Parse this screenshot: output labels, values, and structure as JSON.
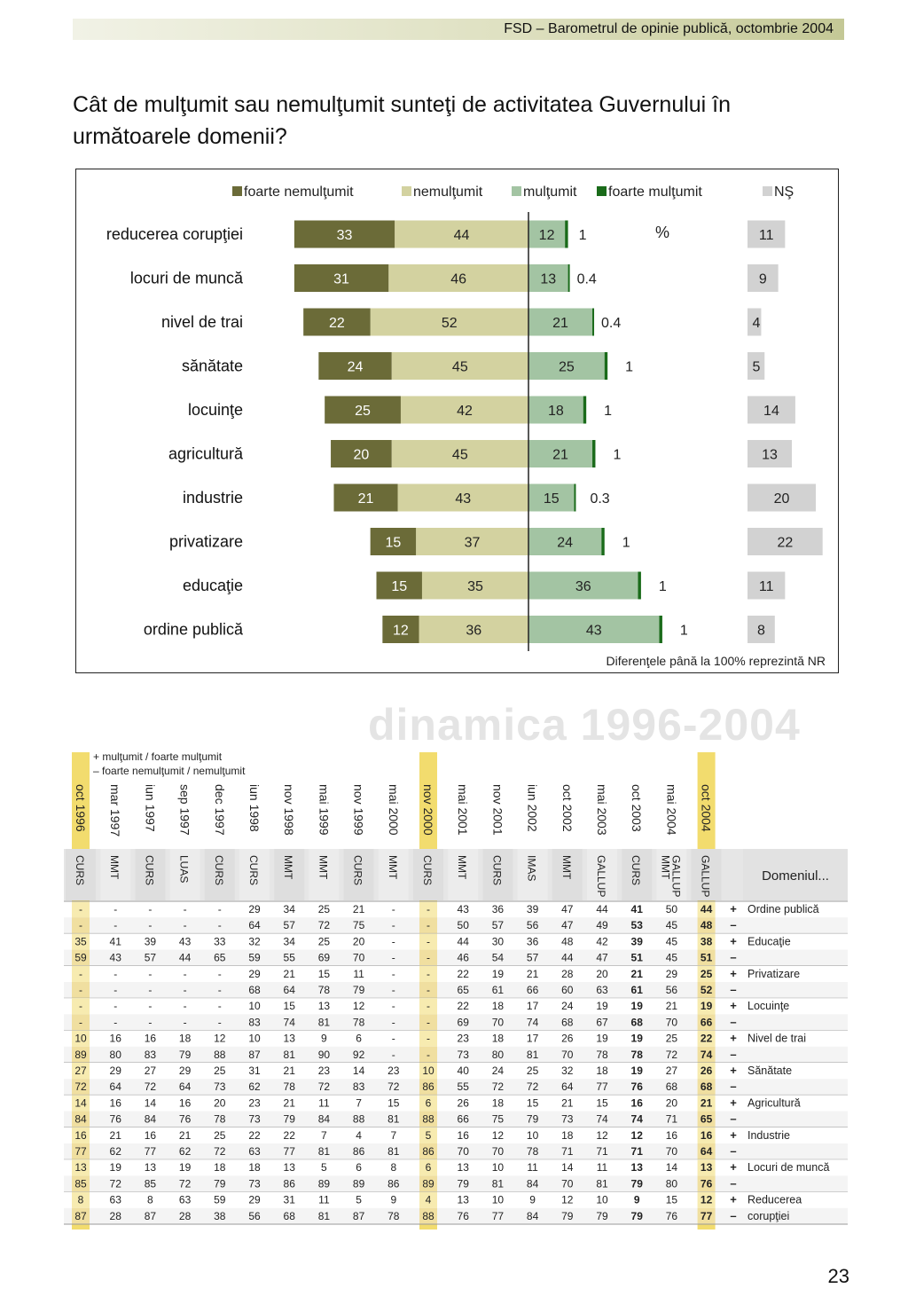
{
  "header": {
    "text": "FSD  –  Barometrul de opinie publică, octombrie 2004"
  },
  "question": "Cât de mulţumit sau nemulţumit sunteţi de activitatea Guvernului în următoarele domenii?",
  "chart_data": {
    "type": "bar",
    "orientation": "horizontal-diverging",
    "legend": [
      {
        "label": "foarte nemulţumit",
        "color": "#6b6b38"
      },
      {
        "label": "nemulţumit",
        "color": "#d3d2a0"
      },
      {
        "label": "mulţumit",
        "color": "#a3c4a3"
      },
      {
        "label": "foarte mulţumit",
        "color": "#1a6b1a"
      },
      {
        "label": "NŞ",
        "color": "#d2d2d2"
      }
    ],
    "unit": "%",
    "categories": [
      "reducerea corupţiei",
      "locuri de muncă",
      "nivel de trai",
      "sănătate",
      "locuinţe",
      "agricultură",
      "industrie",
      "privatizare",
      "educaţie",
      "ordine publică"
    ],
    "series": [
      {
        "name": "foarte nemulţumit",
        "values": [
          33,
          31,
          22,
          24,
          25,
          20,
          21,
          15,
          15,
          12
        ]
      },
      {
        "name": "nemulţumit",
        "values": [
          44,
          46,
          52,
          45,
          42,
          45,
          43,
          37,
          35,
          36
        ]
      },
      {
        "name": "mulţumit",
        "values": [
          12,
          13,
          21,
          25,
          18,
          21,
          15,
          24,
          36,
          43
        ]
      },
      {
        "name": "foarte mulţumit",
        "values": [
          1,
          0.4,
          0.4,
          1,
          1,
          1,
          0.3,
          1,
          1,
          1
        ]
      },
      {
        "name": "NŞ",
        "values": [
          11,
          9,
          4,
          5,
          14,
          13,
          20,
          22,
          11,
          8
        ]
      }
    ],
    "note": "Diferenţele până la 100% reprezintă NR"
  },
  "dynamics": {
    "title": "dinamica 1996-2004",
    "legend": [
      "+  mulţumit / foarte mulţumit",
      "–  foarte nemulţumit / nemulţumit"
    ],
    "periods": [
      "oct 1996",
      "mar 1997",
      "iun 1997",
      "sep 1997",
      "dec 1997",
      "iun 1998",
      "nov 1998",
      "mai 1999",
      "nov 1999",
      "mai 2000",
      "nov 2000",
      "mai 2001",
      "nov 2001",
      "iun 2002",
      "oct 2002",
      "mai 2003",
      "oct 2003",
      "mai 2004",
      "oct 2004"
    ],
    "sources": [
      "CURS",
      "MMT",
      "CURS",
      "LUAS",
      "CURS",
      "CURS",
      "MMT",
      "MMT",
      "CURS",
      "MMT",
      "CURS",
      "MMT",
      "CURS",
      "IMAS",
      "MMT",
      "GALLUP",
      "CURS",
      "GALLUP MMT",
      "GALLUP"
    ],
    "domain_header": "Domeniul...",
    "rows": [
      {
        "vals": [
          "-",
          "-",
          "-",
          "-",
          "-",
          "29",
          "34",
          "25",
          "21",
          "-",
          "-",
          "43",
          "36",
          "39",
          "47",
          "44",
          "41",
          "50",
          "44"
        ],
        "sign": "+",
        "domain": "Ordine publică"
      },
      {
        "vals": [
          "-",
          "-",
          "-",
          "-",
          "-",
          "64",
          "57",
          "72",
          "75",
          "-",
          "-",
          "50",
          "57",
          "56",
          "47",
          "49",
          "53",
          "45",
          "48"
        ],
        "sign": "–",
        "domain": ""
      },
      {
        "vals": [
          "35",
          "41",
          "39",
          "43",
          "33",
          "32",
          "34",
          "25",
          "20",
          "-",
          "-",
          "44",
          "30",
          "36",
          "48",
          "42",
          "39",
          "45",
          "38"
        ],
        "sign": "+",
        "domain": "Educaţie"
      },
      {
        "vals": [
          "59",
          "43",
          "57",
          "44",
          "65",
          "59",
          "55",
          "69",
          "70",
          "-",
          "-",
          "46",
          "54",
          "57",
          "44",
          "47",
          "51",
          "45",
          "51"
        ],
        "sign": "–",
        "domain": ""
      },
      {
        "vals": [
          "-",
          "-",
          "-",
          "-",
          "-",
          "29",
          "21",
          "15",
          "11",
          "-",
          "-",
          "22",
          "19",
          "21",
          "28",
          "20",
          "21",
          "29",
          "25"
        ],
        "sign": "+",
        "domain": "Privatizare"
      },
      {
        "vals": [
          "-",
          "-",
          "-",
          "-",
          "-",
          "68",
          "64",
          "78",
          "79",
          "-",
          "-",
          "65",
          "61",
          "66",
          "60",
          "63",
          "61",
          "56",
          "52"
        ],
        "sign": "–",
        "domain": ""
      },
      {
        "vals": [
          "-",
          "-",
          "-",
          "-",
          "-",
          "10",
          "15",
          "13",
          "12",
          "-",
          "-",
          "22",
          "18",
          "17",
          "24",
          "19",
          "19",
          "21",
          "19"
        ],
        "sign": "+",
        "domain": "Locuinţe"
      },
      {
        "vals": [
          "-",
          "-",
          "-",
          "-",
          "-",
          "83",
          "74",
          "81",
          "78",
          "-",
          "-",
          "69",
          "70",
          "74",
          "68",
          "67",
          "68",
          "70",
          "66"
        ],
        "sign": "–",
        "domain": ""
      },
      {
        "vals": [
          "10",
          "16",
          "16",
          "18",
          "12",
          "10",
          "13",
          "9",
          "6",
          "-",
          "-",
          "23",
          "18",
          "17",
          "26",
          "19",
          "19",
          "25",
          "22"
        ],
        "sign": "+",
        "domain": "Nivel de trai"
      },
      {
        "vals": [
          "89",
          "80",
          "83",
          "79",
          "88",
          "87",
          "81",
          "90",
          "92",
          "-",
          "-",
          "73",
          "80",
          "81",
          "70",
          "78",
          "78",
          "72",
          "74"
        ],
        "sign": "–",
        "domain": ""
      },
      {
        "vals": [
          "27",
          "29",
          "27",
          "29",
          "25",
          "31",
          "21",
          "23",
          "14",
          "23",
          "10",
          "40",
          "24",
          "25",
          "32",
          "18",
          "19",
          "27",
          "26"
        ],
        "sign": "+",
        "domain": "Sănătate"
      },
      {
        "vals": [
          "72",
          "64",
          "72",
          "64",
          "73",
          "62",
          "78",
          "72",
          "83",
          "72",
          "86",
          "55",
          "72",
          "72",
          "64",
          "77",
          "76",
          "68",
          "68"
        ],
        "sign": "–",
        "domain": ""
      },
      {
        "vals": [
          "14",
          "16",
          "14",
          "16",
          "20",
          "23",
          "21",
          "11",
          "7",
          "15",
          "6",
          "26",
          "18",
          "15",
          "21",
          "15",
          "16",
          "20",
          "21"
        ],
        "sign": "+",
        "domain": "Agricultură"
      },
      {
        "vals": [
          "84",
          "76",
          "84",
          "76",
          "78",
          "73",
          "79",
          "84",
          "88",
          "81",
          "88",
          "66",
          "75",
          "79",
          "73",
          "74",
          "74",
          "71",
          "65"
        ],
        "sign": "–",
        "domain": ""
      },
      {
        "vals": [
          "16",
          "21",
          "16",
          "21",
          "25",
          "22",
          "22",
          "7",
          "4",
          "7",
          "5",
          "16",
          "12",
          "10",
          "18",
          "12",
          "12",
          "16",
          "16"
        ],
        "sign": "+",
        "domain": "Industrie"
      },
      {
        "vals": [
          "77",
          "62",
          "77",
          "62",
          "72",
          "63",
          "77",
          "81",
          "86",
          "81",
          "86",
          "70",
          "70",
          "78",
          "71",
          "71",
          "71",
          "70",
          "64"
        ],
        "sign": "–",
        "domain": ""
      },
      {
        "vals": [
          "13",
          "19",
          "13",
          "19",
          "18",
          "18",
          "13",
          "5",
          "6",
          "8",
          "6",
          "13",
          "10",
          "11",
          "14",
          "11",
          "13",
          "14",
          "13"
        ],
        "sign": "+",
        "domain": "Locuri de muncă"
      },
      {
        "vals": [
          "85",
          "72",
          "85",
          "72",
          "79",
          "73",
          "86",
          "89",
          "89",
          "86",
          "89",
          "79",
          "81",
          "84",
          "70",
          "81",
          "79",
          "80",
          "76"
        ],
        "sign": "–",
        "domain": ""
      },
      {
        "vals": [
          "8",
          "63",
          "8",
          "63",
          "59",
          "29",
          "31",
          "11",
          "5",
          "9",
          "4",
          "13",
          "10",
          "9",
          "12",
          "10",
          "9",
          "15",
          "12"
        ],
        "sign": "+",
        "domain": "Reducerea"
      },
      {
        "vals": [
          "87",
          "28",
          "87",
          "28",
          "38",
          "56",
          "68",
          "81",
          "87",
          "78",
          "88",
          "76",
          "77",
          "84",
          "79",
          "79",
          "79",
          "76",
          "77"
        ],
        "sign": "–",
        "domain": "corupţiei"
      }
    ]
  },
  "page_number": "23"
}
